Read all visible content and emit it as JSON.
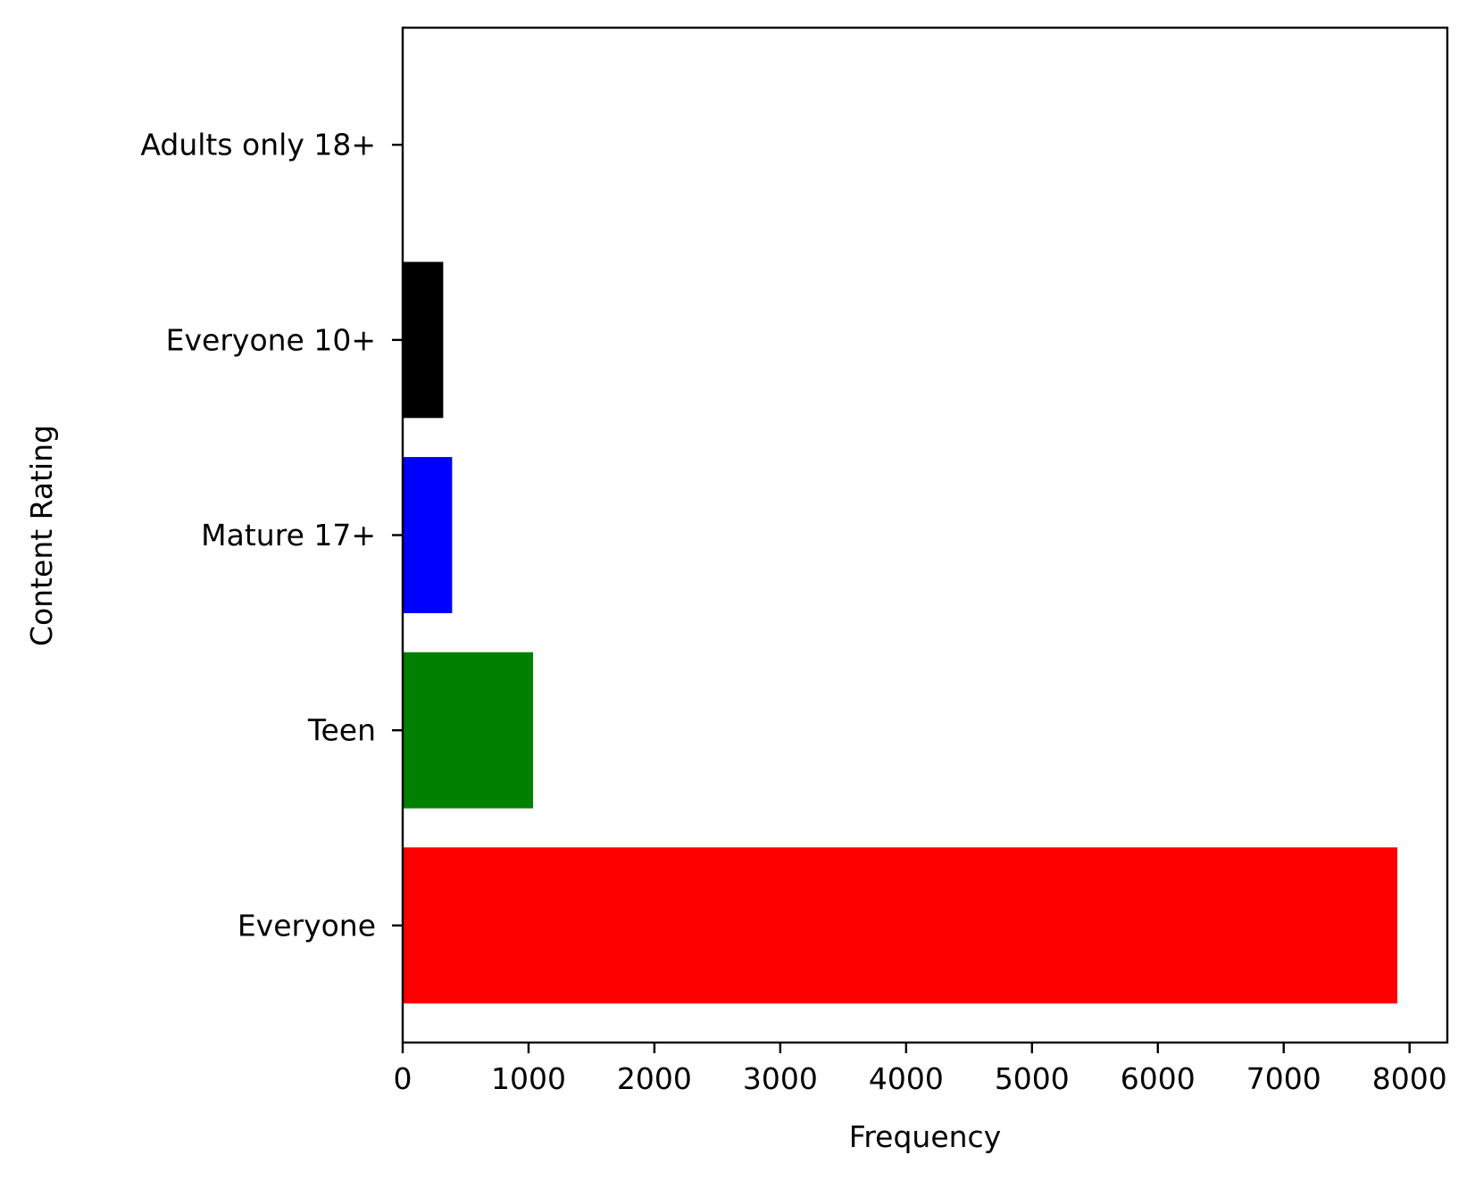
{
  "chart_data": {
    "type": "bar",
    "orientation": "horizontal",
    "title": "",
    "xlabel": "Frequency",
    "ylabel": "Content Rating",
    "categories": [
      "Everyone",
      "Teen",
      "Mature 17+",
      "Everyone 10+",
      "Adults only 18+"
    ],
    "values": [
      7903,
      1036,
      393,
      322,
      3
    ],
    "colors": [
      "#ff0000",
      "#008000",
      "#0000ff",
      "#000000",
      "#ffffff"
    ],
    "xlim": [
      0,
      8300
    ],
    "xticks": [
      0,
      1000,
      2000,
      3000,
      4000,
      5000,
      6000,
      7000,
      8000
    ],
    "xtick_labels": [
      "0",
      "1000",
      "2000",
      "3000",
      "4000",
      "5000",
      "6000",
      "7000",
      "8000"
    ],
    "grid": false,
    "legend": "none"
  }
}
